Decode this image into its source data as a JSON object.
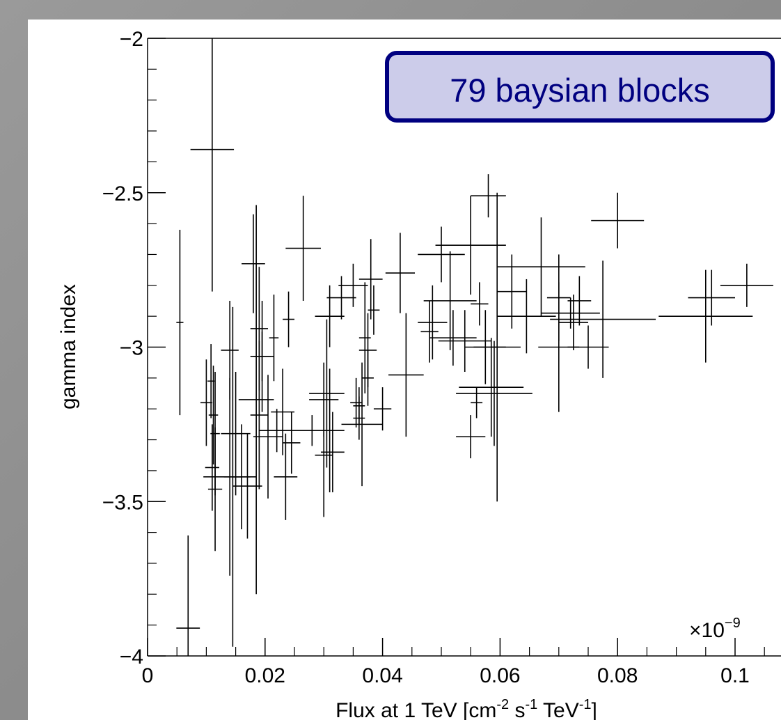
{
  "chart_data": {
    "type": "errorbar",
    "annotation": "79 baysian blocks",
    "x_label": {
      "parts": [
        "Flux at 1 TeV [cm",
        "-2",
        " s",
        "-1",
        " TeV",
        "-1",
        "]"
      ]
    },
    "x_multiplier": {
      "base": "×10",
      "exponent": "−9"
    },
    "y_label": "gamma index",
    "color": "#000000",
    "xlim": [
      0,
      0.108
    ],
    "ylim": [
      -4,
      -2
    ],
    "xticks": [
      0,
      0.02,
      0.04,
      0.06,
      0.08,
      0.1
    ],
    "yticks": [
      {
        "value": -2,
        "label": "−2"
      },
      {
        "value": -2.5,
        "label": "−2.5"
      },
      {
        "value": -3,
        "label": "−3"
      },
      {
        "value": -3.5,
        "label": "−3.5"
      },
      {
        "value": -4,
        "label": "−4"
      }
    ],
    "xminorticks": [
      0.005,
      0.01,
      0.015,
      0.025,
      0.03,
      0.035,
      0.045,
      0.05,
      0.055,
      0.065,
      0.07,
      0.075,
      0.085,
      0.09,
      0.095,
      0.105
    ],
    "yminorticks": [
      -2.1,
      -2.2,
      -2.3,
      -2.4,
      -2.6,
      -2.7,
      -2.8,
      -2.9,
      -3.1,
      -3.2,
      -3.3,
      -3.4,
      -3.6,
      -3.7,
      -3.8,
      -3.9
    ],
    "x": [
      0.0055,
      0.0069,
      0.011,
      0.01,
      0.0108,
      0.0112,
      0.0115,
      0.011,
      0.0115,
      0.014,
      0.0145,
      0.014,
      0.015,
      0.016,
      0.017,
      0.018,
      0.0185,
      0.019,
      0.0195,
      0.019,
      0.0205,
      0.0215,
      0.022,
      0.023,
      0.0235,
      0.024,
      0.0265,
      0.028,
      0.03,
      0.03,
      0.0305,
      0.031,
      0.031,
      0.0315,
      0.033,
      0.035,
      0.0355,
      0.036,
      0.0365,
      0.037,
      0.0375,
      0.0375,
      0.0385,
      0.038,
      0.04,
      0.043,
      0.044,
      0.0485,
      0.05,
      0.0515,
      0.052,
      0.054,
      0.055,
      0.055,
      0.056,
      0.0565,
      0.0575,
      0.058,
      0.0585,
      0.059,
      0.0595,
      0.062,
      0.0645,
      0.067,
      0.07,
      0.07,
      0.072,
      0.0735,
      0.075,
      0.0775,
      0.08,
      0.095,
      0.096,
      0.102,
      0.0725,
      0.0245,
      0.0195,
      0.048,
      0.036
    ],
    "xerr": [
      0.0006,
      0.002,
      0.0037,
      0.001,
      0.0006,
      0.0008,
      0.0008,
      0.0012,
      0.0012,
      0.0045,
      0.0015,
      0.0015,
      0.0025,
      0.0015,
      0.0025,
      0.002,
      0.003,
      0.0015,
      0.0015,
      0.0015,
      0.0025,
      0.0008,
      0.003,
      0.002,
      0.002,
      0.001,
      0.003,
      0.003,
      0.0025,
      0.0015,
      0.003,
      0.0025,
      0.0025,
      0.002,
      0.0025,
      0.0025,
      0.001,
      0.001,
      0.0035,
      0.001,
      0.0015,
      0.001,
      0.001,
      0.002,
      0.0015,
      0.0025,
      0.003,
      0.0025,
      0.004,
      0.0045,
      0.004,
      0.0045,
      0.0025,
      0.006,
      0.001,
      0.0015,
      0.0035,
      0.003,
      0.0055,
      0.0065,
      0.004,
      0.0025,
      0.005,
      0.0075,
      0.002,
      0.0035,
      0.005,
      0.002,
      0.0035,
      0.009,
      0.0045,
      0.008,
      0.004,
      0.0045,
      0.0025,
      0.0015,
      0.002,
      0.0015,
      0.001
    ],
    "values": [
      -2.92,
      -3.91,
      -2.36,
      -3.18,
      -3.11,
      -3.22,
      -3.28,
      -3.39,
      -3.46,
      -3.42,
      -3.42,
      -3.01,
      -3.28,
      -3.42,
      -3.45,
      -2.73,
      -3.17,
      -2.94,
      -3.03,
      -3.22,
      -3.29,
      -2.97,
      -3.27,
      -3.21,
      -3.42,
      -2.91,
      -2.68,
      -3.27,
      -3.17,
      -3.35,
      -3.15,
      -3.27,
      -2.9,
      -3.34,
      -2.84,
      -2.8,
      -3.18,
      -3.19,
      -3.25,
      -2.97,
      -3.01,
      -3.1,
      -2.88,
      -2.78,
      -3.2,
      -2.76,
      -3.09,
      -2.92,
      -2.7,
      -2.85,
      -2.97,
      -2.98,
      -3.29,
      -2.67,
      -3.18,
      -2.86,
      -3.0,
      -2.51,
      -3.13,
      -3.15,
      -3.0,
      -2.82,
      -2.9,
      -2.74,
      -2.84,
      -3.0,
      -2.89,
      -2.85,
      -3.0,
      -2.91,
      -2.59,
      -2.9,
      -2.84,
      -2.8,
      -2.92,
      -3.31,
      -3.03,
      -2.95,
      -3.23
    ],
    "yerr": [
      0.3,
      0.3,
      0.46,
      0.14,
      0.12,
      0.16,
      0.2,
      0.14,
      0.2,
      0.32,
      0.55,
      0.16,
      0.2,
      0.17,
      0.17,
      0.16,
      0.63,
      0.2,
      0.18,
      0.24,
      0.2,
      0.14,
      0.07,
      0.14,
      0.14,
      0.09,
      0.17,
      0.05,
      0.12,
      0.2,
      0.24,
      0.2,
      0.1,
      0.13,
      0.07,
      0.07,
      0.08,
      0.06,
      0.2,
      0.18,
      0.12,
      0.09,
      0.08,
      0.13,
      0.07,
      0.13,
      0.2,
      0.12,
      0.09,
      0.16,
      0.09,
      0.1,
      0.07,
      0.16,
      0.05,
      0.07,
      0.12,
      0.07,
      0.16,
      0.17,
      0.5,
      0.12,
      0.12,
      0.16,
      0.14,
      0.21,
      0.05,
      0.08,
      0.07,
      0.19,
      0.09,
      0.15,
      0.09,
      0.07,
      0.09,
      0.1,
      0.08,
      0.1,
      0.07
    ]
  }
}
